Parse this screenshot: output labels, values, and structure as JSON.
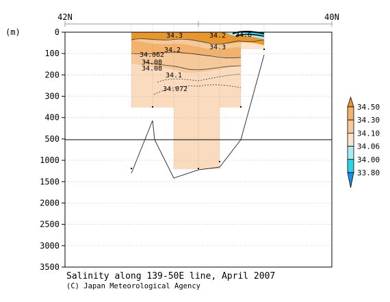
{
  "chart_data": {
    "type": "heatmap",
    "title": "Salinity along 139-50E line, April 2007",
    "credit": "(C) Japan Meteorological Agency",
    "ylabel": "(m)",
    "top_axis": {
      "left_label": "42N",
      "right_label": "40N"
    },
    "y_ticks": [
      "0",
      "100",
      "200",
      "300",
      "400",
      "500",
      "1000",
      "1500",
      "2000",
      "2500",
      "3000",
      "3500"
    ],
    "contour_labels": [
      "34.3",
      "34.2",
      "34.3",
      "34.2",
      "34.6",
      "34.062",
      "34.08",
      "34.08",
      "34.1",
      "34.072"
    ],
    "legend": {
      "levels": [
        "34.50",
        "34.30",
        "34.10",
        "34.06",
        "34.00",
        "33.80"
      ],
      "colors": [
        "#e8962e",
        "#f2b26e",
        "#f6c99b",
        "#fde3cb",
        "#a8ecf2",
        "#30d2e8",
        "#1a8ee8"
      ]
    },
    "bottom_curve_depths_m": [
      1300,
      1200,
      420,
      500,
      1400,
      1230,
      1150,
      500,
      100
    ]
  }
}
